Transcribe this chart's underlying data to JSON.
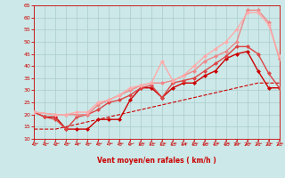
{
  "background_color": "#cce8e8",
  "grid_color": "#aacccc",
  "xlabel": "Vent moyen/en rafales ( km/h )",
  "xlabel_color": "#cc0000",
  "tick_color": "#cc0000",
  "ylim": [
    10,
    65
  ],
  "xlim": [
    0,
    23
  ],
  "yticks": [
    10,
    15,
    20,
    25,
    30,
    35,
    40,
    45,
    50,
    55,
    60,
    65
  ],
  "xticks": [
    0,
    1,
    2,
    3,
    4,
    5,
    6,
    7,
    8,
    9,
    10,
    11,
    12,
    13,
    14,
    15,
    16,
    17,
    18,
    19,
    20,
    21,
    22,
    23
  ],
  "series": [
    {
      "x": [
        0,
        1,
        2,
        3,
        4,
        5,
        6,
        7,
        8,
        9,
        10,
        11,
        12,
        13,
        14,
        15,
        16,
        17,
        18,
        19,
        20,
        21,
        22,
        23
      ],
      "y": [
        14,
        14,
        14,
        15,
        16,
        17,
        18,
        19,
        20,
        21,
        22,
        23,
        24,
        25,
        26,
        27,
        28,
        29,
        30,
        31,
        32,
        33,
        33,
        33
      ],
      "color": "#cc0000",
      "lw": 0.8,
      "marker": null,
      "ls": "--"
    },
    {
      "x": [
        0,
        1,
        2,
        3,
        4,
        5,
        6,
        7,
        8,
        9,
        10,
        11,
        12,
        13,
        14,
        15,
        16,
        17,
        18,
        19,
        20,
        21,
        22,
        23
      ],
      "y": [
        21,
        19,
        19,
        14,
        14,
        14,
        18,
        18,
        18,
        26,
        31,
        31,
        27,
        31,
        33,
        33,
        36,
        38,
        43,
        45,
        46,
        38,
        31,
        31
      ],
      "color": "#cc0000",
      "lw": 1.0,
      "marker": "D",
      "ms": 2,
      "ls": "-"
    },
    {
      "x": [
        0,
        1,
        2,
        3,
        4,
        5,
        6,
        7,
        8,
        9,
        10,
        11,
        12,
        13,
        14,
        15,
        16,
        17,
        18,
        19,
        20,
        21,
        22,
        23
      ],
      "y": [
        21,
        19,
        18,
        14,
        19,
        20,
        22,
        25,
        26,
        28,
        31,
        32,
        27,
        33,
        34,
        35,
        38,
        41,
        44,
        48,
        48,
        45,
        37,
        31
      ],
      "color": "#dd4444",
      "lw": 1.0,
      "marker": "D",
      "ms": 2,
      "ls": "-"
    },
    {
      "x": [
        0,
        2,
        3,
        4,
        5,
        6,
        7,
        8,
        9,
        10,
        11,
        12,
        13,
        14,
        15,
        16,
        17,
        18,
        19,
        20,
        21,
        22,
        23
      ],
      "y": [
        21,
        20,
        20,
        20,
        20,
        24,
        26,
        28,
        30,
        32,
        33,
        33,
        34,
        36,
        38,
        42,
        44,
        46,
        50,
        63,
        63,
        58,
        43
      ],
      "color": "#ee8888",
      "lw": 1.0,
      "marker": "D",
      "ms": 2,
      "ls": "-"
    },
    {
      "x": [
        0,
        2,
        3,
        4,
        5,
        6,
        7,
        8,
        9,
        10,
        11,
        12,
        13,
        14,
        15,
        16,
        17,
        18,
        19,
        20,
        21,
        22,
        23
      ],
      "y": [
        21,
        20,
        20,
        21,
        21,
        25,
        26,
        28,
        31,
        32,
        33,
        42,
        34,
        36,
        40,
        44,
        47,
        50,
        55,
        62,
        62,
        57,
        44
      ],
      "color": "#ffaaaa",
      "lw": 1.0,
      "marker": "D",
      "ms": 2,
      "ls": "-"
    }
  ],
  "arrow_color": "#cc3333"
}
